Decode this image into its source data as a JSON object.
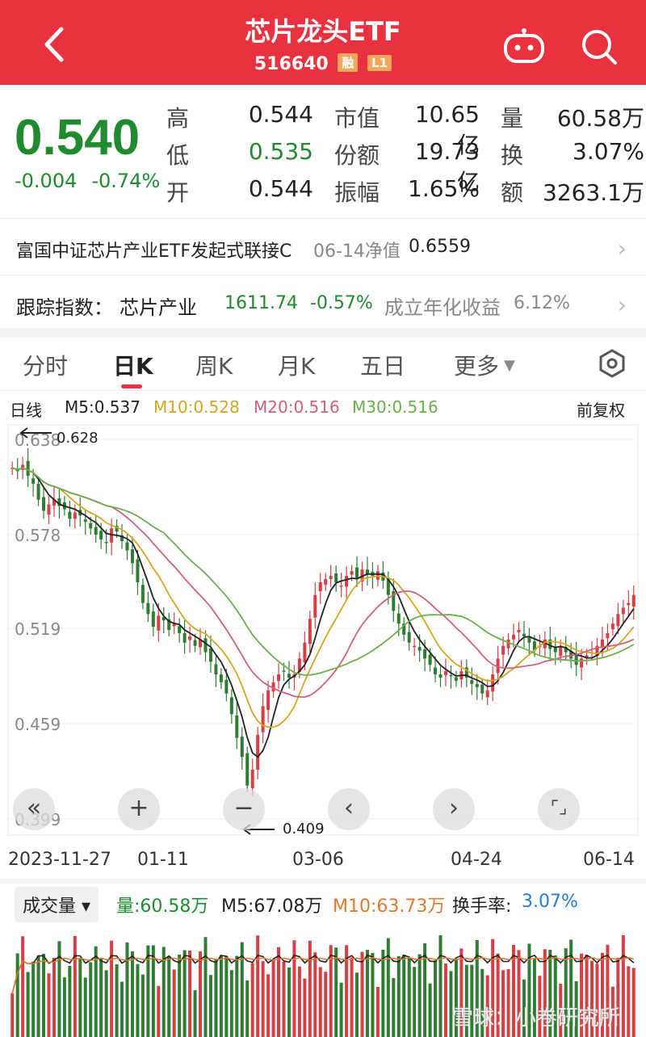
{
  "header": {
    "title": "芯片龙头ETF",
    "code": "516640",
    "tag_margin": "融",
    "tag_level": "L1",
    "colors": {
      "bg": "#e8323f"
    }
  },
  "quote": {
    "price": "0.540",
    "change": "-0.004",
    "change_pct": "-0.74%",
    "high_label": "高",
    "high": "0.544",
    "low_label": "低",
    "low": "0.535",
    "open_label": "开",
    "open": "0.544",
    "mcap_label": "市值",
    "mcap": "10.65亿",
    "shares_label": "份额",
    "shares": "19.73亿",
    "amp_label": "振幅",
    "amp": "1.65%",
    "vol_label": "量",
    "vol": "60.58万",
    "turn_label": "换",
    "turn": "3.07%",
    "amt_label": "额",
    "amt": "3263.1万"
  },
  "fund_row": {
    "name": "富国中证芯片产业ETF发起式联接C",
    "nav_date": "06-14净值",
    "nav": "0.6559"
  },
  "index_row": {
    "label": "跟踪指数：",
    "name": "芯片产业",
    "value": "1611.74",
    "pct": "-0.57%",
    "annual_label": "成立年化收益",
    "annual": "6.12%"
  },
  "tabs": [
    "分时",
    "日K",
    "周K",
    "月K",
    "五日",
    "更多"
  ],
  "ma_legend": {
    "type": "日线",
    "m5": "M5:0.537",
    "m10": "M10:0.528",
    "m20": "M20:0.516",
    "m30": "M30:0.516",
    "adjust": "前复权",
    "colors": {
      "m5": "#222222",
      "m10": "#d9a520",
      "m20": "#d2607e",
      "m30": "#6ab04c"
    }
  },
  "chart_data": {
    "type": "candlestick",
    "y_ticks": [
      "0.638",
      "0.578",
      "0.519",
      "0.459",
      "0.399"
    ],
    "x_ticks": [
      "2023-11-27",
      "01-11",
      "03-06",
      "04-24",
      "06-14"
    ],
    "ylim": [
      0.399,
      0.638
    ],
    "max_label": "0.628",
    "min_label": "0.409",
    "close_path": [
      0.62,
      0.618,
      0.622,
      0.615,
      0.61,
      0.6,
      0.593,
      0.597,
      0.6,
      0.596,
      0.594,
      0.588,
      0.592,
      0.59,
      0.586,
      0.582,
      0.578,
      0.575,
      0.573,
      0.582,
      0.58,
      0.574,
      0.568,
      0.56,
      0.548,
      0.535,
      0.528,
      0.52,
      0.527,
      0.524,
      0.518,
      0.522,
      0.516,
      0.51,
      0.514,
      0.508,
      0.512,
      0.504,
      0.498,
      0.49,
      0.485,
      0.478,
      0.465,
      0.45,
      0.438,
      0.42,
      0.43,
      0.452,
      0.47,
      0.48,
      0.485,
      0.49,
      0.492,
      0.488,
      0.49,
      0.5,
      0.51,
      0.525,
      0.54,
      0.548,
      0.55,
      0.552,
      0.548,
      0.546,
      0.552,
      0.555,
      0.55,
      0.556,
      0.553,
      0.552,
      0.555,
      0.549,
      0.54,
      0.53,
      0.522,
      0.515,
      0.51,
      0.508,
      0.505,
      0.5,
      0.496,
      0.49,
      0.488,
      0.492,
      0.489,
      0.486,
      0.492,
      0.488,
      0.484,
      0.482,
      0.478,
      0.48,
      0.49,
      0.5,
      0.508,
      0.512,
      0.515,
      0.518,
      0.514,
      0.51,
      0.505,
      0.508,
      0.512,
      0.506,
      0.504,
      0.508,
      0.504,
      0.5,
      0.496,
      0.5,
      0.502,
      0.504,
      0.508,
      0.512,
      0.516,
      0.522,
      0.528,
      0.532,
      0.535,
      0.54
    ],
    "volume_legend": {
      "label": "成交量",
      "vol": "量:60.58万",
      "m5": "M5:67.08万",
      "m10": "M10:63.73万",
      "turnover_label": "换手率:",
      "turnover": "3.07%"
    }
  },
  "controls": {
    "rewind": "«",
    "zoom_in": "+",
    "zoom_out": "−",
    "prev": "‹",
    "next": "›",
    "fullscreen": "⌜⌟"
  },
  "watermark": "雪球：小卷研究所"
}
